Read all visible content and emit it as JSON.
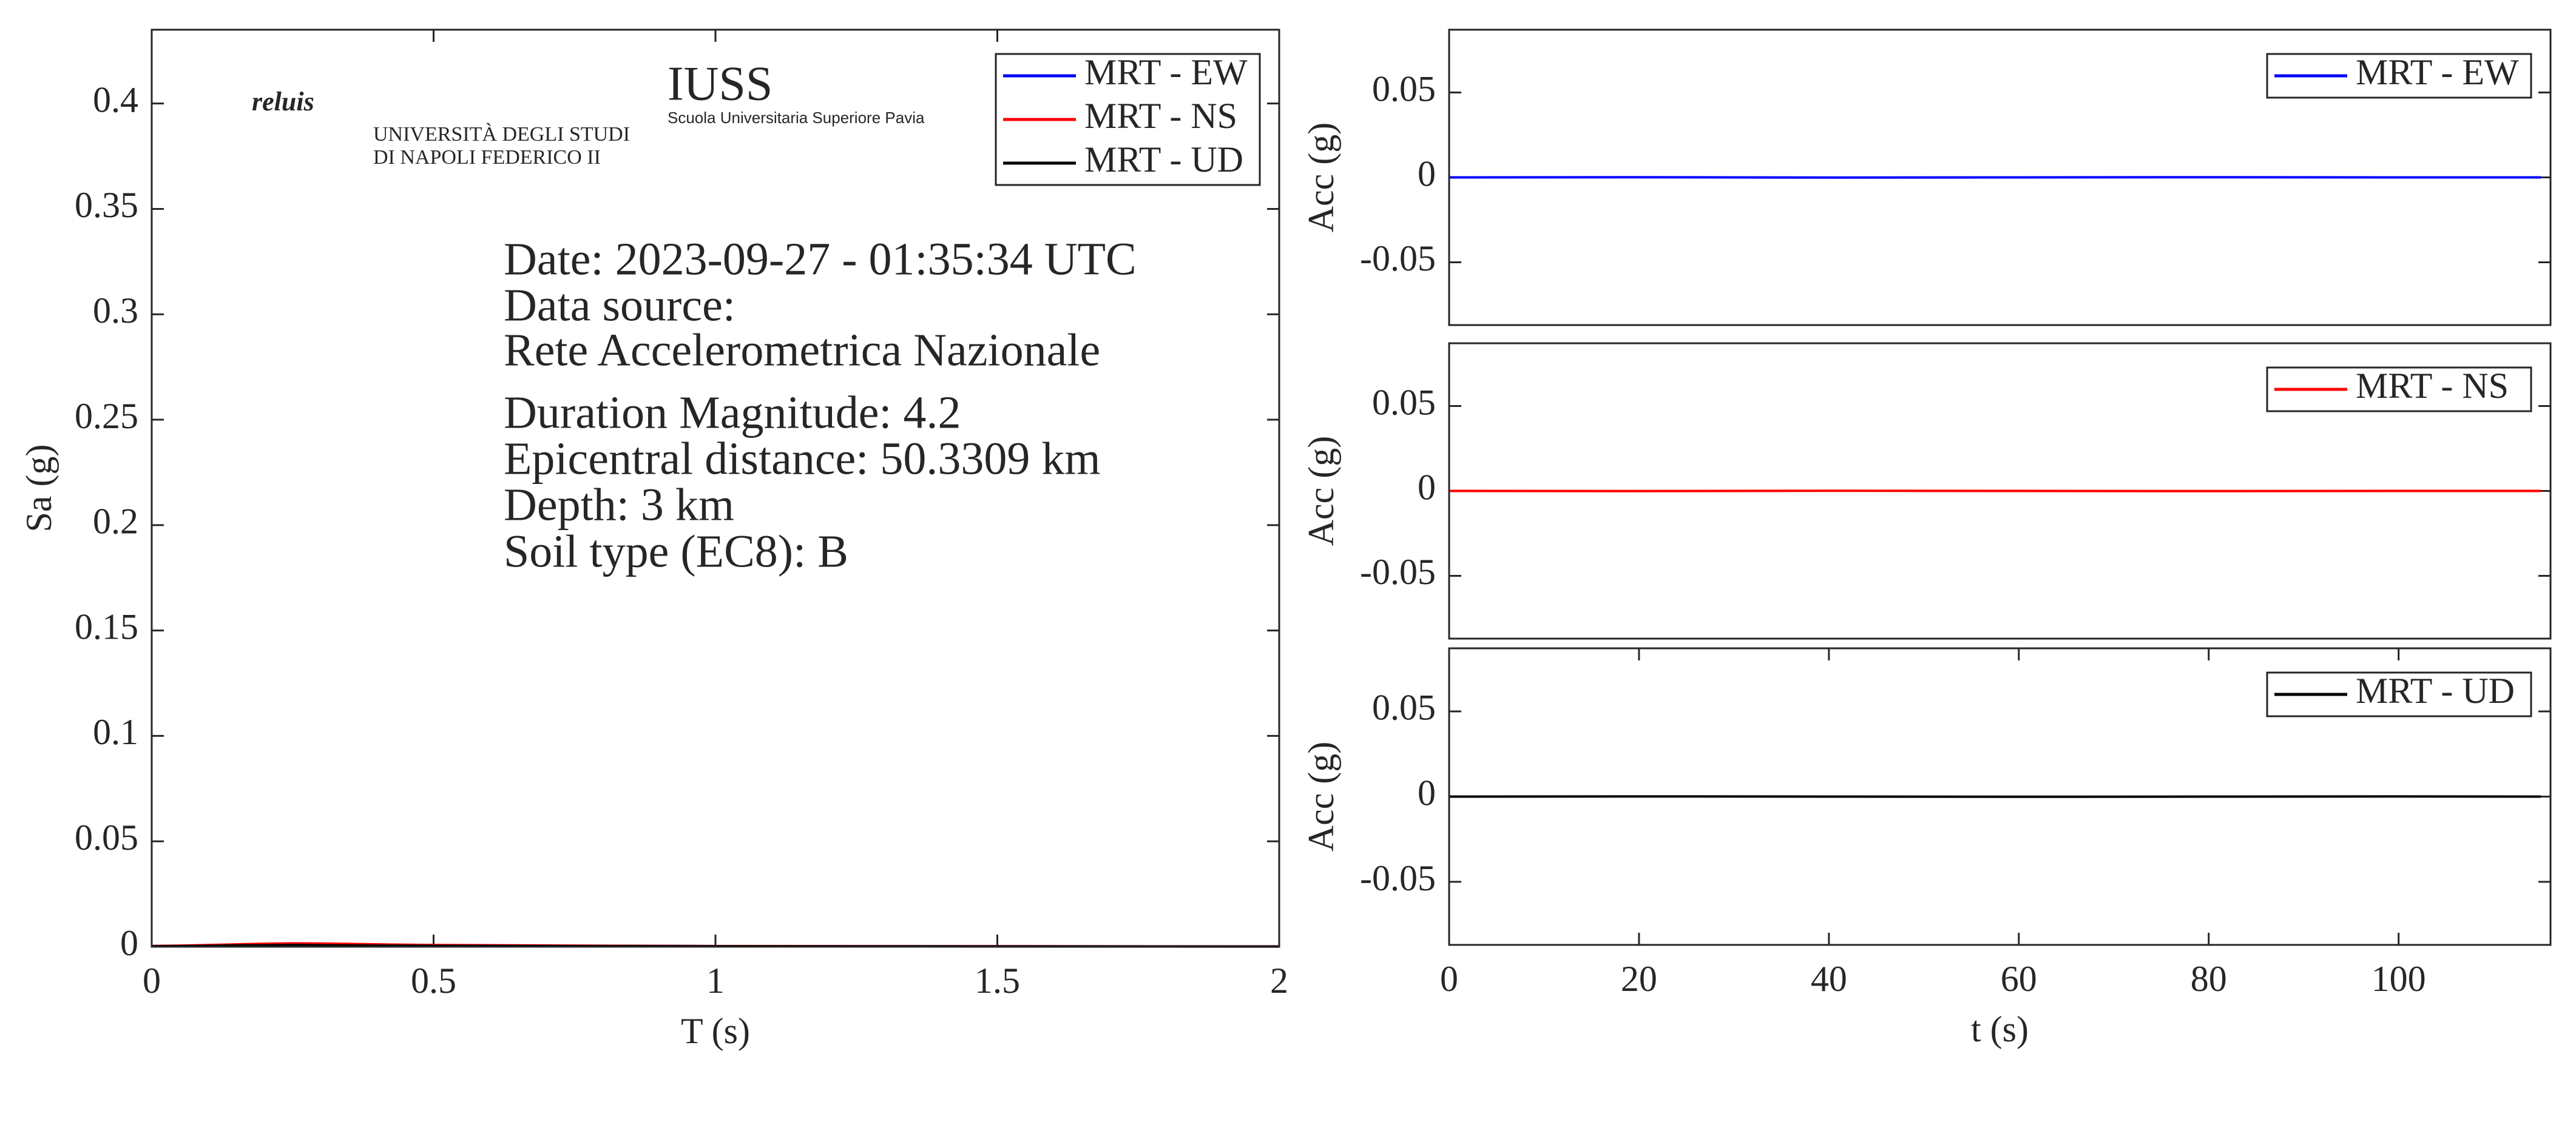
{
  "chart_data": [
    {
      "type": "line",
      "xlabel": "T (s)",
      "ylabel": "Sa (g)",
      "x": [
        0,
        0.05,
        0.1,
        0.15,
        0.2,
        0.25,
        0.3,
        0.4,
        0.5,
        0.75,
        1,
        1.5,
        2
      ],
      "xlim": [
        0,
        2
      ],
      "xticks": [
        0,
        0.5,
        1,
        1.5,
        2
      ],
      "ylim": [
        0,
        0.435
      ],
      "yticks": [
        0,
        0.05,
        0.1,
        0.15,
        0.2,
        0.25,
        0.3,
        0.35,
        0.4
      ],
      "legend": "northeast",
      "series": [
        {
          "name": "MRT - EW",
          "color": "#0000ff",
          "values": [
            0.0003,
            0.0004,
            0.0006,
            0.0009,
            0.0012,
            0.0013,
            0.0012,
            0.0009,
            0.0007,
            0.0004,
            0.0003,
            0.0002,
            0.0001
          ]
        },
        {
          "name": "MRT - NS",
          "color": "#ff0000",
          "values": [
            0.0003,
            0.0005,
            0.0008,
            0.0011,
            0.0014,
            0.0016,
            0.0015,
            0.0011,
            0.0008,
            0.0005,
            0.0003,
            0.0002,
            0.0001
          ]
        },
        {
          "name": "MRT - UD",
          "color": "#000000",
          "values": [
            0.0002,
            0.0003,
            0.0004,
            0.0006,
            0.0007,
            0.0008,
            0.0007,
            0.0005,
            0.0004,
            0.0003,
            0.0002,
            0.0001,
            0.0001
          ]
        }
      ],
      "annotations": [
        "Date: 2023-09-27 - 01:35:34 UTC",
        "Data source:",
        "Rete Accelerometrica Nazionale",
        "Duration Magnitude: 4.2",
        "Epicentral distance: 50.3309 km",
        "Depth: 3 km",
        "Soil type (EC8): B"
      ],
      "logos": [
        "reluis",
        "UNIVERSITÀ DEGLI STUDI",
        "DI NAPOLI FEDERICO II",
        "IUSS",
        "Scuola Universitaria Superiore Pavia"
      ]
    },
    {
      "type": "line",
      "ylabel": "Acc (g)",
      "x": [
        0,
        20,
        40,
        60,
        80,
        100,
        115
      ],
      "xlim": [
        0,
        116
      ],
      "ylim": [
        -0.087,
        0.087
      ],
      "yticks": [
        -0.05,
        0,
        0.05
      ],
      "legend": "northeast",
      "series": [
        {
          "name": "MRT - EW",
          "color": "#0000ff",
          "values": [
            0,
            0.0001,
            -0.0001,
            0,
            0.0001,
            0,
            0
          ]
        }
      ]
    },
    {
      "type": "line",
      "ylabel": "Acc (g)",
      "x": [
        0,
        20,
        40,
        60,
        80,
        100,
        115
      ],
      "xlim": [
        0,
        116
      ],
      "ylim": [
        -0.087,
        0.087
      ],
      "yticks": [
        -0.05,
        0,
        0.05
      ],
      "legend": "northeast",
      "series": [
        {
          "name": "MRT - NS",
          "color": "#ff0000",
          "values": [
            0,
            -0.0001,
            0.0001,
            0,
            -0.0001,
            0,
            0
          ]
        }
      ]
    },
    {
      "type": "line",
      "xlabel": "t (s)",
      "ylabel": "Acc (g)",
      "x": [
        0,
        20,
        40,
        60,
        80,
        100,
        115
      ],
      "xlim": [
        0,
        116
      ],
      "xticks": [
        0,
        20,
        40,
        60,
        80,
        100
      ],
      "ylim": [
        -0.087,
        0.087
      ],
      "yticks": [
        -0.05,
        0,
        0.05
      ],
      "legend": "northeast",
      "series": [
        {
          "name": "MRT - UD",
          "color": "#000000",
          "values": [
            0,
            0.0001,
            0,
            -0.0001,
            0,
            0.0001,
            0
          ]
        }
      ]
    }
  ]
}
